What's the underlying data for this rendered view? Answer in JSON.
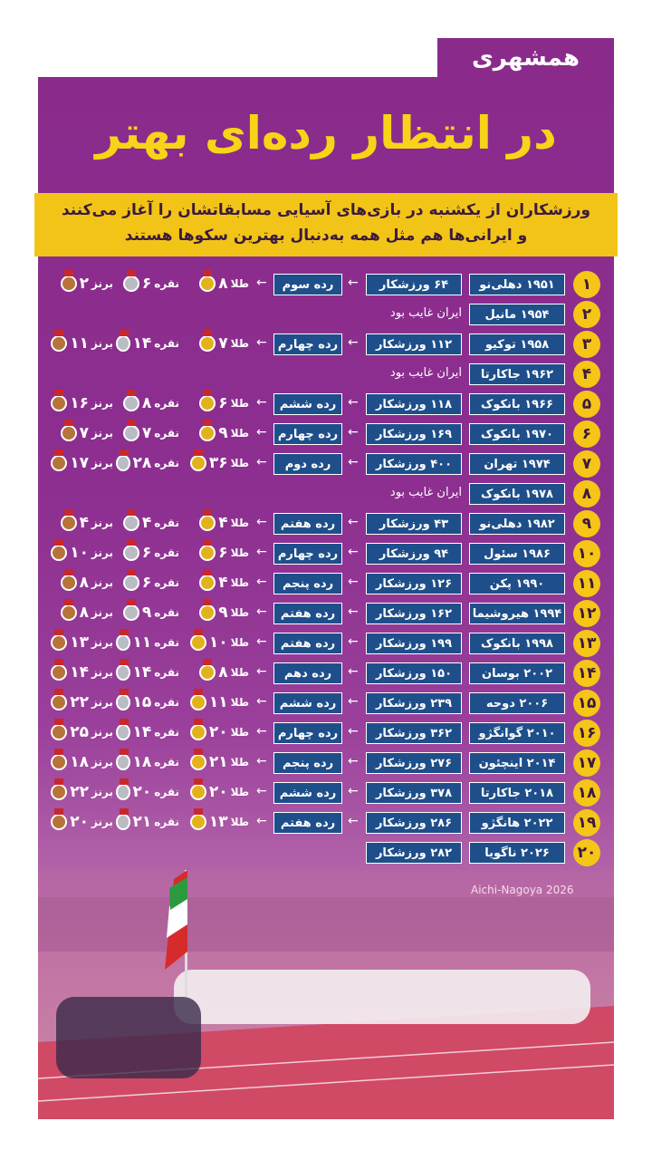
{
  "header": {
    "logo": "همشهری",
    "title": "در انتظار رده‌ای بهتر",
    "subtitle": [
      "ورزشکاران از یکشنبه در بازی‌های آسیایی مسابقاتشان را آغاز می‌کنند",
      "و ایرانی‌ها هم مثل همه به‌دنبال بهترین سکوها هستند"
    ]
  },
  "medal_labels": {
    "gold": "طلا",
    "silver": "نقره",
    "bronze": "برنز"
  },
  "rows": [
    {
      "number": "۱",
      "games": "۱۹۵۱ دهلی‌نو",
      "athletes": "۶۴ ورزشکار",
      "rank": "رده سوم",
      "gold": "۸",
      "silver": "۶",
      "bronze": "۲"
    },
    {
      "number": "۲",
      "games": "۱۹۵۴ مانیل",
      "absent": "ایران غایب بود"
    },
    {
      "number": "۳",
      "games": "۱۹۵۸ توکیو",
      "athletes": "۱۱۲ ورزشکار",
      "rank": "رده چهارم",
      "gold": "۷",
      "silver": "۱۴",
      "bronze": "۱۱"
    },
    {
      "number": "۴",
      "games": "۱۹۶۲ جاکارتا",
      "absent": "ایران غایب بود"
    },
    {
      "number": "۵",
      "games": "۱۹۶۶ بانکوک",
      "athletes": "۱۱۸ ورزشکار",
      "rank": "رده ششم",
      "gold": "۶",
      "silver": "۸",
      "bronze": "۱۶"
    },
    {
      "number": "۶",
      "games": "۱۹۷۰ بانکوک",
      "athletes": "۱۶۹ ورزشکار",
      "rank": "رده چهارم",
      "gold": "۹",
      "silver": "۷",
      "bronze": "۷"
    },
    {
      "number": "۷",
      "games": "۱۹۷۴ تهران",
      "athletes": "۴۰۰ ورزشکار",
      "rank": "رده دوم",
      "gold": "۳۶",
      "silver": "۲۸",
      "bronze": "۱۷"
    },
    {
      "number": "۸",
      "games": "۱۹۷۸ بانکوک",
      "absent": "ایران غایب بود"
    },
    {
      "number": "۹",
      "games": "۱۹۸۲ دهلی‌نو",
      "athletes": "۴۳ ورزشکار",
      "rank": "رده هفتم",
      "gold": "۴",
      "silver": "۴",
      "bronze": "۴"
    },
    {
      "number": "۱۰",
      "games": "۱۹۸۶ سئول",
      "athletes": "۹۴ ورزشکار",
      "rank": "رده چهارم",
      "gold": "۶",
      "silver": "۶",
      "bronze": "۱۰"
    },
    {
      "number": "۱۱",
      "games": "۱۹۹۰ پکن",
      "athletes": "۱۲۶ ورزشکار",
      "rank": "رده پنجم",
      "gold": "۴",
      "silver": "۶",
      "bronze": "۸"
    },
    {
      "number": "۱۲",
      "games": "۱۹۹۴ هیروشیما",
      "athletes": "۱۶۲ ورزشکار",
      "rank": "رده هفتم",
      "gold": "۹",
      "silver": "۹",
      "bronze": "۸"
    },
    {
      "number": "۱۳",
      "games": "۱۹۹۸ بانکوک",
      "athletes": "۱۹۹ ورزشکار",
      "rank": "رده هفتم",
      "gold": "۱۰",
      "silver": "۱۱",
      "bronze": "۱۳"
    },
    {
      "number": "۱۴",
      "games": "۲۰۰۲ بوسان",
      "athletes": "۱۵۰ ورزشکار",
      "rank": "رده دهم",
      "gold": "۸",
      "silver": "۱۴",
      "bronze": "۱۴"
    },
    {
      "number": "۱۵",
      "games": "۲۰۰۶ دوحه",
      "athletes": "۲۳۹ ورزشکار",
      "rank": "رده ششم",
      "gold": "۱۱",
      "silver": "۱۵",
      "bronze": "۲۲"
    },
    {
      "number": "۱۶",
      "games": "۲۰۱۰ گوانگژو",
      "athletes": "۳۶۲ ورزشکار",
      "rank": "رده چهارم",
      "gold": "۲۰",
      "silver": "۱۴",
      "bronze": "۲۵"
    },
    {
      "number": "۱۷",
      "games": "۲۰۱۴ اینچئون",
      "athletes": "۲۷۶ ورزشکار",
      "rank": "رده پنجم",
      "gold": "۲۱",
      "silver": "۱۸",
      "bronze": "۱۸"
    },
    {
      "number": "۱۸",
      "games": "۲۰۱۸ جاکارتا",
      "athletes": "۳۷۸ ورزشکار",
      "rank": "رده ششم",
      "gold": "۲۰",
      "silver": "۲۰",
      "bronze": "۲۲"
    },
    {
      "number": "۱۹",
      "games": "۲۰۲۲ هانگژو",
      "athletes": "۲۸۶ ورزشکار",
      "rank": "رده هفتم",
      "gold": "۱۳",
      "silver": "۲۱",
      "bronze": "۲۰"
    },
    {
      "number": "۲۰",
      "games": "۲۰۲۶ ناگویا",
      "athletes": "۲۸۲ ورزشکار"
    }
  ],
  "photo_caption": "Aichi-Nagoya 2026"
}
